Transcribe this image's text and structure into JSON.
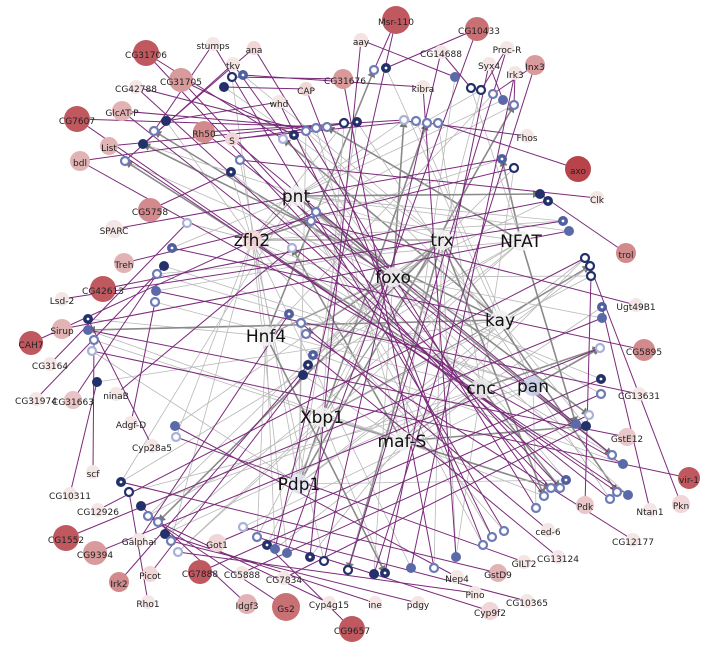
{
  "diagram": {
    "tfs": [
      {
        "id": "pnt",
        "label": "pnt"
      },
      {
        "id": "zfh2",
        "label": "zfh2"
      },
      {
        "id": "trx",
        "label": "trx"
      },
      {
        "id": "NFAT",
        "label": "NFAT"
      },
      {
        "id": "foxo",
        "label": "foxo"
      },
      {
        "id": "kay",
        "label": "kay"
      },
      {
        "id": "Hnf4",
        "label": "Hnf4"
      },
      {
        "id": "cnc",
        "label": "cnc"
      },
      {
        "id": "pan",
        "label": "pan"
      },
      {
        "id": "Xbp1",
        "label": "Xbp1"
      },
      {
        "id": "maf-S",
        "label": "maf-S"
      },
      {
        "id": "Pdp1",
        "label": "Pdp1"
      }
    ],
    "genes": [
      {
        "id": "Msr-110",
        "label": "Msr-110",
        "color": "#c0585f"
      },
      {
        "id": "CG10433",
        "label": "CG10433",
        "color": "#c97074"
      },
      {
        "id": "aay",
        "label": "aay",
        "color": "#f4e1e1"
      },
      {
        "id": "CG14688",
        "label": "CG14688",
        "color": "#f5e6e6"
      },
      {
        "id": "Proc-R",
        "label": "Proc-R",
        "color": "#f5e6e6"
      },
      {
        "id": "Inx3",
        "label": "Inx3",
        "color": "#d99a9c"
      },
      {
        "id": "Syx4",
        "label": "Syx4",
        "color": "#f5e6e6"
      },
      {
        "id": "Irk3",
        "label": "Irk3",
        "color": "#f5e6e6"
      },
      {
        "id": "CG31676",
        "label": "CG31676",
        "color": "#d9999b"
      },
      {
        "id": "kibra",
        "label": "kibra",
        "color": "#f5e6e6"
      },
      {
        "id": "CAP",
        "label": "CAP",
        "color": "#f1d6d7"
      },
      {
        "id": "whd",
        "label": "whd",
        "color": "#f5e6e6"
      },
      {
        "id": "stumps",
        "label": "stumps",
        "color": "#f5e6e6"
      },
      {
        "id": "ana",
        "label": "ana",
        "color": "#f1d6d7"
      },
      {
        "id": "tkv",
        "label": "tkv",
        "color": "#f5e6e6"
      },
      {
        "id": "CG31706",
        "label": "CG31706",
        "color": "#c0585f"
      },
      {
        "id": "CG31705",
        "label": "CG31705",
        "color": "#d99a9c"
      },
      {
        "id": "CG42788",
        "label": "CG42788",
        "color": "#f5e6e6"
      },
      {
        "id": "GlcAT-P",
        "label": "GlcAT-P",
        "color": "#e2b3b4"
      },
      {
        "id": "CG7607",
        "label": "CG7607",
        "color": "#c0585f"
      },
      {
        "id": "List",
        "label": "List",
        "color": "#e2b3b4"
      },
      {
        "id": "bdl",
        "label": "bdl",
        "color": "#e2b3b4"
      },
      {
        "id": "Rh50",
        "label": "Rh50",
        "color": "#d38a8d"
      },
      {
        "id": "S",
        "label": "S",
        "color": "#f1d6d7"
      },
      {
        "id": "Fhos",
        "label": "Fhos",
        "color": "#f5e6e6"
      },
      {
        "id": "axo",
        "label": "axo",
        "color": "#b8444b"
      },
      {
        "id": "Clk",
        "label": "Clk",
        "color": "#f5e6e6"
      },
      {
        "id": "CG5758",
        "label": "CG5758",
        "color": "#d38a8d"
      },
      {
        "id": "SPARC",
        "label": "SPARC",
        "color": "#f5e6e6"
      },
      {
        "id": "Treh",
        "label": "Treh",
        "color": "#e2b3b4"
      },
      {
        "id": "trol",
        "label": "trol",
        "color": "#d38a8d"
      },
      {
        "id": "CG42613",
        "label": "CG42613",
        "color": "#c0585f"
      },
      {
        "id": "Lsd-2",
        "label": "Lsd-2",
        "color": "#f5e6e6"
      },
      {
        "id": "Sirup",
        "label": "Sirup",
        "color": "#e2b3b4"
      },
      {
        "id": "CAH7",
        "label": "CAH7",
        "color": "#c0585f"
      },
      {
        "id": "Ugt49B1",
        "label": "Ugt49B1",
        "color": "#f5e6e6"
      },
      {
        "id": "CG3164",
        "label": "CG3164",
        "color": "#f5e6e6"
      },
      {
        "id": "CG5895",
        "label": "CG5895",
        "color": "#d38a8d"
      },
      {
        "id": "CG31974",
        "label": "CG31974",
        "color": "#f5e6e6"
      },
      {
        "id": "CG31663",
        "label": "CG31663",
        "color": "#e8c4c5"
      },
      {
        "id": "ninaB",
        "label": "ninaB",
        "color": "#f5e6e6"
      },
      {
        "id": "CG13631",
        "label": "CG13631",
        "color": "#f5e6e6"
      },
      {
        "id": "Adgf-D",
        "label": "Adgf-D",
        "color": "#f5e6e6"
      },
      {
        "id": "Cyp28a5",
        "label": "Cyp28a5",
        "color": "#f5e6e6"
      },
      {
        "id": "GstE12",
        "label": "GstE12",
        "color": "#eac8c9"
      },
      {
        "id": "scf",
        "label": "scf",
        "color": "#f5e6e6"
      },
      {
        "id": "vir-1",
        "label": "vir-1",
        "color": "#c0585f"
      },
      {
        "id": "CG10311",
        "label": "CG10311",
        "color": "#f5e6e6"
      },
      {
        "id": "CG12926",
        "label": "CG12926",
        "color": "#f5e6e6"
      },
      {
        "id": "Pkn",
        "label": "Pkn",
        "color": "#f1d6d7"
      },
      {
        "id": "Pdk",
        "label": "Pdk",
        "color": "#eac8c9"
      },
      {
        "id": "Ntan1",
        "label": "Ntan1",
        "color": "#f5e6e6"
      },
      {
        "id": "CG1552",
        "label": "CG1552",
        "color": "#c0585f"
      },
      {
        "id": "CG9394",
        "label": "CG9394",
        "color": "#d99a9c"
      },
      {
        "id": "Galphai",
        "label": "Galphai",
        "color": "#f5e6e6"
      },
      {
        "id": "ced-6",
        "label": "ced-6",
        "color": "#f5e6e6"
      },
      {
        "id": "CG12177",
        "label": "CG12177",
        "color": "#f5e6e6"
      },
      {
        "id": "CG13124",
        "label": "CG13124",
        "color": "#f5e6e6"
      },
      {
        "id": "Irk2",
        "label": "Irk2",
        "color": "#d38a8d"
      },
      {
        "id": "Picot",
        "label": "Picot",
        "color": "#f1d6d7"
      },
      {
        "id": "Got1",
        "label": "Got1",
        "color": "#f1d6d7"
      },
      {
        "id": "CG7888",
        "label": "CG7888",
        "color": "#c0585f"
      },
      {
        "id": "CG5888",
        "label": "CG5888",
        "color": "#f5e6e6"
      },
      {
        "id": "CG7834",
        "label": "CG7834",
        "color": "#f5e6e6"
      },
      {
        "id": "Nep4",
        "label": "Nep4",
        "color": "#f5e6e6"
      },
      {
        "id": "GILT2",
        "label": "GILT2",
        "color": "#f5e6e6"
      },
      {
        "id": "GstD9",
        "label": "GstD9",
        "color": "#e2b3b4"
      },
      {
        "id": "Rho1",
        "label": "Rho1",
        "color": "#f5e6e6"
      },
      {
        "id": "Idgf3",
        "label": "Idgf3",
        "color": "#e2b3b4"
      },
      {
        "id": "Gs2",
        "label": "Gs2",
        "color": "#c97074"
      },
      {
        "id": "Cyp4g15",
        "label": "Cyp4g15",
        "color": "#f5e6e6"
      },
      {
        "id": "ine",
        "label": "ine",
        "color": "#f5e6e6"
      },
      {
        "id": "pdgy",
        "label": "pdgy",
        "color": "#f5e6e6"
      },
      {
        "id": "Pino",
        "label": "Pino",
        "color": "#f5e6e6"
      },
      {
        "id": "CG10365",
        "label": "CG10365",
        "color": "#f5e6e6"
      },
      {
        "id": "Cyp9f2",
        "label": "Cyp9f2",
        "color": "#f1d6d7"
      },
      {
        "id": "CG9657",
        "label": "CG9657",
        "color": "#c0585f"
      }
    ]
  }
}
